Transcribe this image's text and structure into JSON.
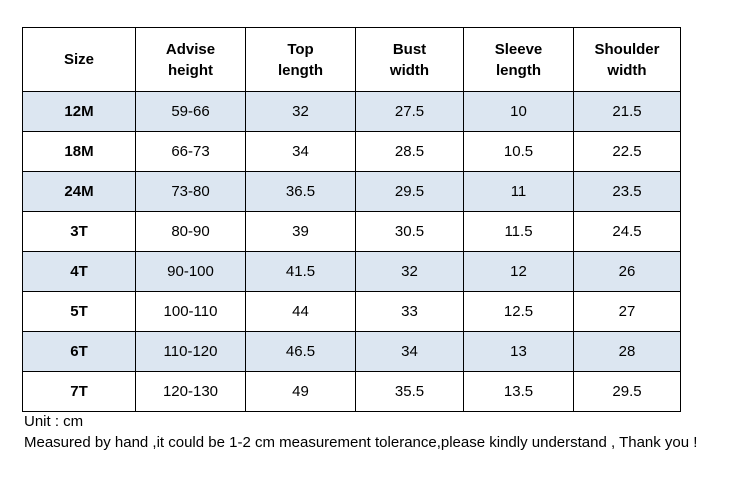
{
  "table": {
    "headers": [
      [
        "Size"
      ],
      [
        "Advise",
        "height"
      ],
      [
        "Top",
        "length"
      ],
      [
        "Bust",
        "width"
      ],
      [
        "Sleeve",
        "length"
      ],
      [
        "Shoulder",
        "width"
      ]
    ],
    "rows": [
      [
        "12M",
        "59-66",
        "32",
        "27.5",
        "10",
        "21.5"
      ],
      [
        "18M",
        "66-73",
        "34",
        "28.5",
        "10.5",
        "22.5"
      ],
      [
        "24M",
        "73-80",
        "36.5",
        "29.5",
        "11",
        "23.5"
      ],
      [
        "3T",
        "80-90",
        "39",
        "30.5",
        "11.5",
        "24.5"
      ],
      [
        "4T",
        "90-100",
        "41.5",
        "32",
        "12",
        "26"
      ],
      [
        "5T",
        "100-110",
        "44",
        "33",
        "12.5",
        "27"
      ],
      [
        "6T",
        "110-120",
        "46.5",
        "34",
        "13",
        "28"
      ],
      [
        "7T",
        "120-130",
        "49",
        "35.5",
        "13.5",
        "29.5"
      ]
    ],
    "row_shading_color": "#dce6f1"
  },
  "notes": {
    "unit": "Unit : cm",
    "tolerance": "Measured by hand ,it could be 1-2 cm measurement tolerance,please kindly understand , Thank you !"
  }
}
